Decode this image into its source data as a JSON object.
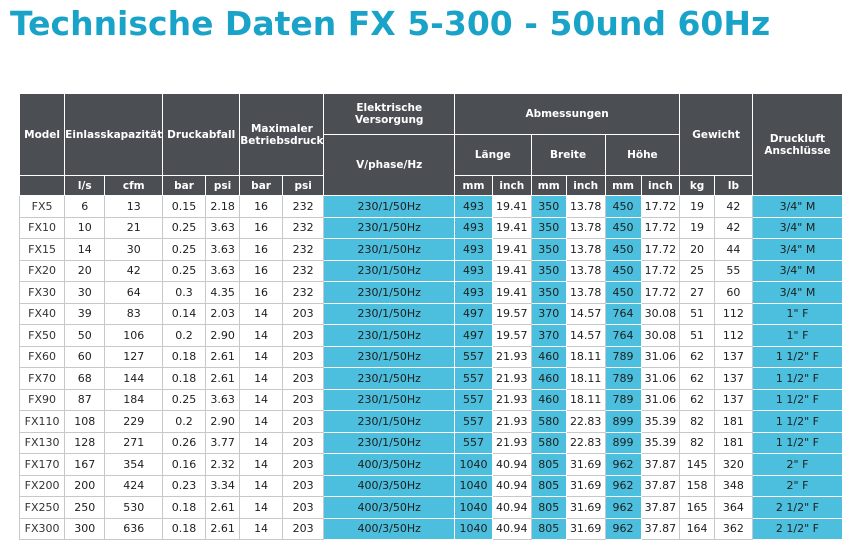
{
  "title": "Technische Daten FX 5-300 - 50und 60Hz",
  "colors": {
    "title": "#1aa3c8",
    "header_bg": "#4b4f53",
    "highlight": "#4bbfdd"
  },
  "headers": {
    "model": "Model",
    "einlass": "Einlasskapazität",
    "druckabfall": "Druckabfall",
    "maxdruck": "Maximaler Betriebsdruck",
    "elektrisch": "Elektrische Versorgung",
    "abmessungen": "Abmessungen",
    "laenge": "Länge",
    "breite": "Breite",
    "hoehe": "Höhe",
    "gewicht": "Gewicht",
    "druckluft": "Druckluft Anschlüsse",
    "units": {
      "ls": "l/s",
      "cfm": "cfm",
      "bar1": "bar",
      "psi1": "psi",
      "bar2": "bar",
      "psi2": "psi",
      "vphase": "V/phase/Hz",
      "mm1": "mm",
      "inch1": "inch",
      "mm2": "mm",
      "inch2": "inch",
      "mm3": "mm",
      "inch3": "inch",
      "kg": "kg",
      "lb": "lb"
    }
  },
  "rows": [
    [
      "FX5",
      "6",
      "13",
      "0.15",
      "2.18",
      "16",
      "232",
      "230/1/50Hz",
      "493",
      "19.41",
      "350",
      "13.78",
      "450",
      "17.72",
      "19",
      "42",
      "3/4\" M"
    ],
    [
      "FX10",
      "10",
      "21",
      "0.25",
      "3.63",
      "16",
      "232",
      "230/1/50Hz",
      "493",
      "19.41",
      "350",
      "13.78",
      "450",
      "17.72",
      "19",
      "42",
      "3/4\" M"
    ],
    [
      "FX15",
      "14",
      "30",
      "0.25",
      "3.63",
      "16",
      "232",
      "230/1/50Hz",
      "493",
      "19.41",
      "350",
      "13.78",
      "450",
      "17.72",
      "20",
      "44",
      "3/4\" M"
    ],
    [
      "FX20",
      "20",
      "42",
      "0.25",
      "3.63",
      "16",
      "232",
      "230/1/50Hz",
      "493",
      "19.41",
      "350",
      "13.78",
      "450",
      "17.72",
      "25",
      "55",
      "3/4\" M"
    ],
    [
      "FX30",
      "30",
      "64",
      "0.3",
      "4.35",
      "16",
      "232",
      "230/1/50Hz",
      "493",
      "19.41",
      "350",
      "13.78",
      "450",
      "17.72",
      "27",
      "60",
      "3/4\" M"
    ],
    [
      "FX40",
      "39",
      "83",
      "0.14",
      "2.03",
      "14",
      "203",
      "230/1/50Hz",
      "497",
      "19.57",
      "370",
      "14.57",
      "764",
      "30.08",
      "51",
      "112",
      "1\" F"
    ],
    [
      "FX50",
      "50",
      "106",
      "0.2",
      "2.90",
      "14",
      "203",
      "230/1/50Hz",
      "497",
      "19.57",
      "370",
      "14.57",
      "764",
      "30.08",
      "51",
      "112",
      "1\" F"
    ],
    [
      "FX60",
      "60",
      "127",
      "0.18",
      "2.61",
      "14",
      "203",
      "230/1/50Hz",
      "557",
      "21.93",
      "460",
      "18.11",
      "789",
      "31.06",
      "62",
      "137",
      "1 1/2\" F"
    ],
    [
      "FX70",
      "68",
      "144",
      "0.18",
      "2.61",
      "14",
      "203",
      "230/1/50Hz",
      "557",
      "21.93",
      "460",
      "18.11",
      "789",
      "31.06",
      "62",
      "137",
      "1 1/2\" F"
    ],
    [
      "FX90",
      "87",
      "184",
      "0.25",
      "3.63",
      "14",
      "203",
      "230/1/50Hz",
      "557",
      "21.93",
      "460",
      "18.11",
      "789",
      "31.06",
      "62",
      "137",
      "1 1/2\" F"
    ],
    [
      "FX110",
      "108",
      "229",
      "0.2",
      "2.90",
      "14",
      "203",
      "230/1/50Hz",
      "557",
      "21.93",
      "580",
      "22.83",
      "899",
      "35.39",
      "82",
      "181",
      "1 1/2\" F"
    ],
    [
      "FX130",
      "128",
      "271",
      "0.26",
      "3.77",
      "14",
      "203",
      "230/1/50Hz",
      "557",
      "21.93",
      "580",
      "22.83",
      "899",
      "35.39",
      "82",
      "181",
      "1 1/2\" F"
    ],
    [
      "FX170",
      "167",
      "354",
      "0.16",
      "2.32",
      "14",
      "203",
      "400/3/50Hz",
      "1040",
      "40.94",
      "805",
      "31.69",
      "962",
      "37.87",
      "145",
      "320",
      "2\" F"
    ],
    [
      "FX200",
      "200",
      "424",
      "0.23",
      "3.34",
      "14",
      "203",
      "400/3/50Hz",
      "1040",
      "40.94",
      "805",
      "31.69",
      "962",
      "37.87",
      "158",
      "348",
      "2\" F"
    ],
    [
      "FX250",
      "250",
      "530",
      "0.18",
      "2.61",
      "14",
      "203",
      "400/3/50Hz",
      "1040",
      "40.94",
      "805",
      "31.69",
      "962",
      "37.87",
      "165",
      "364",
      "2 1/2\" F"
    ],
    [
      "FX300",
      "300",
      "636",
      "0.18",
      "2.61",
      "14",
      "203",
      "400/3/50Hz",
      "1040",
      "40.94",
      "805",
      "31.69",
      "962",
      "37.87",
      "164",
      "362",
      "2 1/2\" F"
    ]
  ]
}
